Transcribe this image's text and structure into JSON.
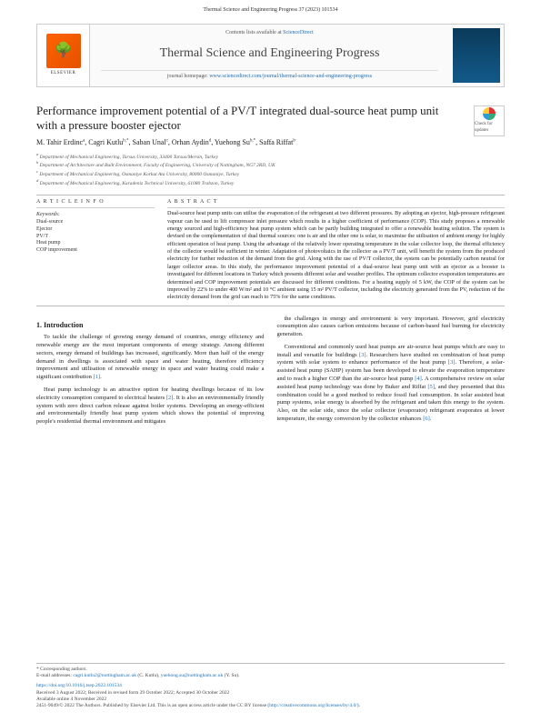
{
  "running_header": "Thermal Science and Engineering Progress 37 (2023) 101534",
  "header": {
    "contents_prefix": "Contents lists available at ",
    "contents_link": "ScienceDirect",
    "journal_title": "Thermal Science and Engineering Progress",
    "homepage_prefix": "journal homepage: ",
    "homepage_url": "www.sciencedirect.com/journal/thermal-science-and-engineering-progress",
    "publisher": "ELSEVIER"
  },
  "check_badge": "Check for updates",
  "article": {
    "title": "Performance improvement potential of a PV/T integrated dual-source heat pump unit with a pressure booster ejector",
    "authors_html": "M. Tahir Erdinc<sup>a</sup>, Cagri Kutlu<sup>b,*</sup>, Saban Unal<sup>c</sup>, Orhan Aydin<sup>d</sup>, Yuehong Su<sup>b,*</sup>, Saffa Riffat<sup>b</sup>",
    "affiliations": [
      "a Department of Mechanical Engineering, Tarsus University, 33400 Tarsus/Mersin, Turkey",
      "b Department of Architecture and Built Environment, Faculty of Engineering, University of Nottingham, NG7 2RD, UK",
      "c Department of Mechanical Engineering, Osmaniye Korkut Ata University, 80000 Osmaniye, Turkey",
      "d Department of Mechanical Engineering, Karadeniz Technical University, 61080 Trabzon, Turkey"
    ]
  },
  "info": {
    "label": "A R T I C L E  I N F O",
    "keywords_label": "Keywords:",
    "keywords": [
      "Dual-source",
      "Ejector",
      "PV/T",
      "Heat pump",
      "COP improvement"
    ]
  },
  "abstract": {
    "label": "A B S T R A C T",
    "text": "Dual-source heat pump units can utilise the evaporation of the refrigerant at two different pressures. By adopting an ejector, high-pressure refrigerant vapour can be used to lift compressor inlet pressure which results in a higher coefficient of performance (COP). This study proposes a renewable energy sourced and high-efficiency heat pump system which can be partly building integrated to offer a renewable heating solution. The system is devised on the complementation of dual thermal sources: one is air and the other one is solar, to maximise the utilisation of ambient energy for highly efficient operation of heat pump. Using the advantage of the relatively lower operating temperature in the solar collector loop, the thermal efficiency of the collector would be sufficient in winter. Adaptation of photovoltaics in the collector as a PV/T unit, will benefit the system from the produced electricity for further reduction of the demand from the grid. Along with the use of PV/T collector, the system can be potentially carbon neutral for larger collector areas. In this study, the performance improvement potential of a dual-source heat pump unit with an ejector as a booster is investigated for different locations in Turkey which presents different solar and weather profiles. The optimum collector evaporation temperatures are determined and COP improvement potentials are discussed for different conditions. For a heating supply of 5 kW, the COP of the system can be improved by 22% to under 400 W/m² and 10 °C ambient using 15 m² PV/T collector, including the electricity generated from the PV, reduction of the electricity demand from the grid can reach to 75% for the same conditions."
  },
  "body": {
    "intro_heading": "1. Introduction",
    "p1": "To tackle the challenge of growing energy demand of countries, energy efficiency and renewable energy are the most important components of energy strategy. Among different sectors, energy demand of buildings has increased, significantly. More than half of the energy demand in dwellings is associated with space and water heating, therefore efficiency improvement and utilisation of renewable energy in space and water heating could make a significant contribution [1].",
    "p2": "Heat pump technology is an attractive option for heating dwellings because of its low electricity consumption compared to electrical heaters [2]. It is also an environmentally friendly system with zero direct carbon release against boiler systems. Developing an energy-efficient and environmentally friendly heat pump system which shows the potential of improving people's residential thermal environment and mitigates",
    "p3": "the challenges in energy and environment is very important. However, grid electricity consumption also causes carbon emissions because of carbon-based fuel burning for electricity generation.",
    "p4": "Conventional and commonly used heat pumps are air-source heat pumps which are easy to install and versatile for buildings [3]. Researchers have studied on combination of heat pump system with solar system to enhance performance of the heat pump [3]. Therefore, a solar-assisted heat pump (SAHP) system has been developed to elevate the evaporation temperature and to reach a higher COP than the air-source heat pump [4]. A comprehensive review on solar assisted heat pump technology was done by Buker and Riffat [5], and they presented that this combination could be a good method to reduce fossil fuel consumption. In solar assisted heat pump systems, solar energy is absorbed by the refrigerant and taken this energy to the system. Also, on the solar side, since the solar collector (evaporator) refrigerant evaporates at lower temperature, the energy conversion by the collector enhances [6]."
  },
  "footer": {
    "corr": "* Corresponding authors.",
    "emails_label": "E-mail addresses: ",
    "email1": "cagri.kutlu2@nottingham.ac.uk",
    "email1_name": " (C. Kutlu), ",
    "email2": "yuehong.su@nottingham.ac.uk",
    "email2_name": " (Y. Su).",
    "doi": "https://doi.org/10.1016/j.tsep.2022.101534",
    "history": "Received 3 August 2022; Received in revised form 29 October 2022; Accepted 30 October 2022",
    "avail": "Available online 4 November 2022",
    "copyright": "2451-9049/© 2022 The Authors. Published by Elsevier Ltd. This is an open access article under the CC BY license (",
    "license_url": "http://creativecommons.org/licenses/by/4.0/",
    "copyright_end": ")."
  }
}
